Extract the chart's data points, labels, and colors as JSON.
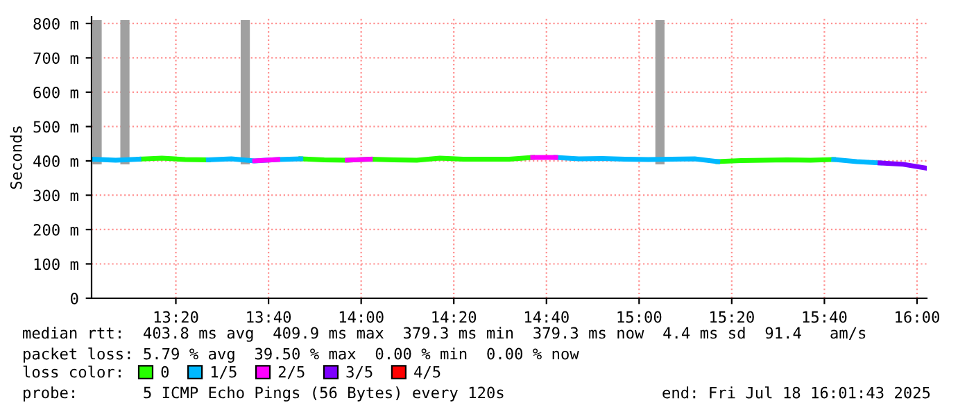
{
  "chart_data": {
    "type": "line",
    "ylabel": "Seconds",
    "legend_title": "loss color:",
    "legend": "bottom",
    "grid": true,
    "marker": "none",
    "line_style": "solid",
    "xlim": [
      13.03,
      16.035
    ],
    "ylim": [
      0,
      820
    ],
    "xticks": [
      {
        "value": 13.3333,
        "label": "13:20"
      },
      {
        "value": 13.6667,
        "label": "13:40"
      },
      {
        "value": 14,
        "label": "14:00"
      },
      {
        "value": 14.3333,
        "label": "14:20"
      },
      {
        "value": 14.6667,
        "label": "14:40"
      },
      {
        "value": 15,
        "label": "15:00"
      },
      {
        "value": 15.3333,
        "label": "15:20"
      },
      {
        "value": 15.6667,
        "label": "15:40"
      },
      {
        "value": 16,
        "label": "16:00"
      }
    ],
    "yticks": [
      0,
      {
        "value": 100,
        "label": "100 m"
      },
      {
        "value": 200,
        "label": "200 m"
      },
      {
        "value": 300,
        "label": "300 m"
      },
      {
        "value": 400,
        "label": "400 m"
      },
      {
        "value": 500,
        "label": "500 m"
      },
      {
        "value": 600,
        "label": "600 m"
      },
      {
        "value": 700,
        "label": "700 m"
      },
      {
        "value": 800,
        "label": "800 m"
      }
    ],
    "x": [
      13.033,
      13.117,
      13.2,
      13.283,
      13.367,
      13.45,
      13.533,
      13.617,
      13.7,
      13.783,
      13.867,
      13.95,
      14.033,
      14.117,
      14.2,
      14.283,
      14.367,
      14.45,
      14.533,
      14.617,
      14.7,
      14.783,
      14.867,
      14.95,
      15.033,
      15.117,
      15.2,
      15.283,
      15.367,
      15.45,
      15.533,
      15.617,
      15.7,
      15.783,
      15.867,
      15.95,
      16.033
    ],
    "series": [
      {
        "type": "bar",
        "color": "#a0a0a0",
        "x": [
          13.05,
          13.15,
          13.583,
          15.075
        ],
        "base": [
          390,
          390,
          390,
          390
        ],
        "values": [
          420,
          420,
          420,
          420
        ]
      },
      {
        "name": "0",
        "color": "#26ff00",
        "values": [
          null,
          null,
          405,
          408,
          404,
          403,
          null,
          null,
          null,
          406,
          403,
          402,
          405,
          403,
          402,
          408,
          405,
          405,
          405,
          410,
          null,
          null,
          null,
          null,
          null,
          null,
          null,
          398,
          401,
          402,
          403,
          402,
          404,
          null,
          null,
          null,
          null
        ]
      },
      {
        "name": "1/5",
        "color": "#00b8ff",
        "values": [
          405,
          402,
          405,
          null,
          null,
          403,
          406,
          400,
          404,
          406,
          null,
          null,
          null,
          null,
          null,
          null,
          null,
          null,
          null,
          null,
          410,
          406,
          407,
          405,
          404,
          405,
          406,
          398,
          null,
          null,
          null,
          null,
          404,
          398,
          394,
          null,
          null
        ]
      },
      {
        "name": "2/5",
        "color": "#ff00ff",
        "values": [
          null,
          null,
          null,
          null,
          null,
          null,
          null,
          400,
          404,
          null,
          null,
          402,
          405,
          null,
          null,
          null,
          null,
          null,
          null,
          410,
          410,
          null,
          null,
          null,
          null,
          null,
          null,
          null,
          null,
          null,
          null,
          null,
          null,
          null,
          null,
          null,
          null
        ]
      },
      {
        "name": "3/5",
        "color": "#7e00ff",
        "values": [
          null,
          null,
          null,
          null,
          null,
          null,
          null,
          null,
          null,
          null,
          null,
          null,
          null,
          null,
          null,
          null,
          null,
          null,
          null,
          null,
          null,
          null,
          null,
          null,
          null,
          null,
          null,
          null,
          null,
          null,
          null,
          null,
          null,
          null,
          394,
          390,
          379
        ]
      },
      {
        "name": "4/5",
        "color": "#ff0000",
        "values": [
          null,
          null,
          null,
          null,
          null,
          null,
          null,
          null,
          null,
          null,
          null,
          null,
          null,
          null,
          null,
          null,
          null,
          null,
          null,
          null,
          null,
          null,
          null,
          null,
          null,
          null,
          null,
          null,
          null,
          null,
          null,
          null,
          null,
          null,
          null,
          null,
          null
        ]
      }
    ],
    "annotations": [
      "median rtt:  403.8 ms avg  409.9 ms max  379.3 ms min  379.3 ms now  4.4 ms sd  91.4   am/s",
      "packet loss: 5.79 % avg  39.50 % max  0.00 % min  0.00 % now",
      "probe:       5 ICMP Echo Pings (56 Bytes) every 120s",
      "end: Fri Jul 18 16:01:43 2025"
    ]
  }
}
